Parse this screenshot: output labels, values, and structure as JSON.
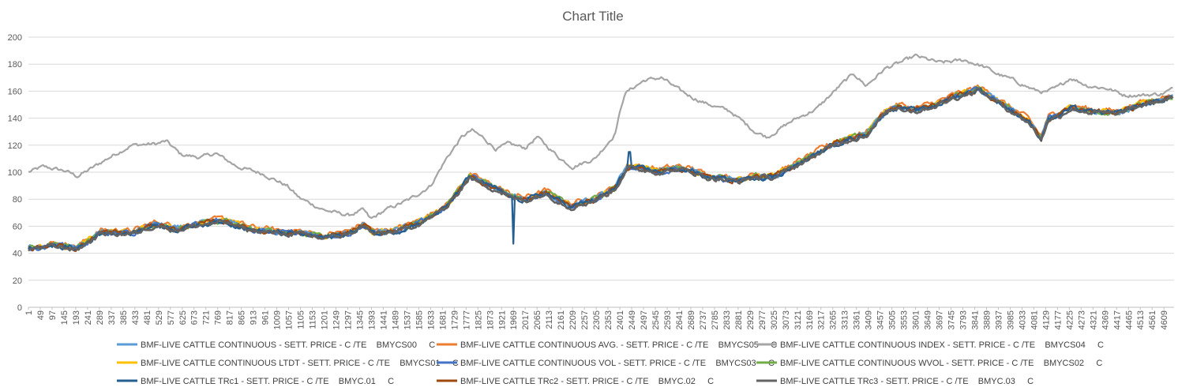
{
  "colors": {
    "background": "#ffffff",
    "gridline": "#d9d9d9",
    "axis": "#bfbfbf",
    "text": "#595959"
  },
  "chart_data": {
    "type": "line",
    "title": "Chart Title",
    "xlabel": "",
    "ylabel": "",
    "ylim": [
      0,
      200
    ],
    "y_ticks": [
      0,
      20,
      40,
      60,
      80,
      100,
      120,
      140,
      160,
      180,
      200
    ],
    "x_range": [
      1,
      4650
    ],
    "x_tick_labels": [
      "1",
      "49",
      "97",
      "145",
      "193",
      "241",
      "289",
      "337",
      "385",
      "433",
      "481",
      "529",
      "577",
      "625",
      "673",
      "721",
      "769",
      "817",
      "865",
      "913",
      "961",
      "1009",
      "1057",
      "1105",
      "1153",
      "1201",
      "1249",
      "1297",
      "1345",
      "1393",
      "1441",
      "1489",
      "1537",
      "1585",
      "1633",
      "1681",
      "1729",
      "1777",
      "1825",
      "1873",
      "1921",
      "1969",
      "2017",
      "2065",
      "2113",
      "2161",
      "2209",
      "2257",
      "2305",
      "2353",
      "2401",
      "2449",
      "2497",
      "2545",
      "2593",
      "2641",
      "2689",
      "2737",
      "2785",
      "2833",
      "2881",
      "2929",
      "2977",
      "3025",
      "3073",
      "3121",
      "3169",
      "3217",
      "3265",
      "3313",
      "3361",
      "3409",
      "3457",
      "3505",
      "3553",
      "3601",
      "3649",
      "3697",
      "3745",
      "3793",
      "3841",
      "3889",
      "3937",
      "3985",
      "4033",
      "4081",
      "4129",
      "4177",
      "4225",
      "4273",
      "4321",
      "4369",
      "4417",
      "4465",
      "4513",
      "4561",
      "4609"
    ],
    "grid": true,
    "legend_position": "bottom",
    "base_path": {
      "x": [
        1,
        100,
        200,
        300,
        420,
        520,
        600,
        700,
        800,
        900,
        1000,
        1100,
        1200,
        1300,
        1360,
        1400,
        1500,
        1600,
        1700,
        1790,
        1850,
        1900,
        1960,
        2017,
        2100,
        2200,
        2300,
        2380,
        2430,
        2480,
        2560,
        2640,
        2700,
        2750,
        2800,
        2880,
        2950,
        3025,
        3100,
        3200,
        3280,
        3330,
        3400,
        3480,
        3530,
        3600,
        3680,
        3760,
        3860,
        3940,
        4000,
        4060,
        4110,
        4140,
        4180,
        4230,
        4320,
        4420,
        4510,
        4600,
        4650
      ],
      "y": [
        44,
        46,
        44,
        56,
        55,
        62,
        58,
        62,
        64,
        58,
        56,
        55,
        52,
        55,
        61,
        55,
        57,
        64,
        75,
        97,
        92,
        88,
        82,
        80,
        85,
        75,
        80,
        88,
        104,
        103,
        101,
        103,
        101,
        97,
        96,
        94,
        97,
        97,
        104,
        114,
        122,
        125,
        128,
        145,
        149,
        146,
        150,
        156,
        162,
        152,
        145,
        138,
        125,
        140,
        142,
        148,
        145,
        144,
        150,
        154,
        156
      ]
    },
    "series": [
      {
        "name": "BMF-LIVE CATTLE CONTINUOUS - SETT. PRICE - C /TE    BMYCS00     C",
        "color": "#5b9bd5",
        "offset": 0,
        "legend_row": 0,
        "legend_col": 0
      },
      {
        "name": "BMF-LIVE CATTLE CONTINUOUS AVG. - SETT. PRICE - C /TE    BMYCS05     C",
        "color": "#ed7d31",
        "offset": 1.6,
        "legend_row": 0,
        "legend_col": 1
      },
      {
        "name": "BMF-LIVE CATTLE CONTINUOUS INDEX - SETT. PRICE - C /TE    BMYCS04     C",
        "color": "#a5a5a5",
        "x": [
          1,
          60,
          150,
          200,
          240,
          330,
          420,
          520,
          560,
          620,
          700,
          760,
          850,
          950,
          1050,
          1100,
          1200,
          1300,
          1360,
          1390,
          1450,
          1550,
          1633,
          1700,
          1760,
          1800,
          1850,
          1900,
          1950,
          2017,
          2065,
          2113,
          2160,
          2209,
          2300,
          2380,
          2420,
          2450,
          2500,
          2570,
          2640,
          2700,
          2750,
          2850,
          2950,
          3000,
          3100,
          3200,
          3300,
          3350,
          3400,
          3480,
          3550,
          3600,
          3700,
          3800,
          3880,
          3930,
          4000,
          4080,
          4129,
          4180,
          4230,
          4300,
          4380,
          4450,
          4520,
          4600,
          4650
        ],
        "y": [
          100,
          104,
          101,
          97,
          101,
          111,
          120,
          121,
          123,
          113,
          111,
          114,
          104,
          99,
          90,
          81,
          72,
          68,
          72,
          65,
          72,
          80,
          90,
          111,
          126,
          131,
          125,
          117,
          121,
          118,
          126,
          118,
          110,
          104,
          110,
          128,
          158,
          162,
          168,
          170,
          161,
          155,
          151,
          145,
          130,
          126,
          138,
          147,
          165,
          173,
          164,
          177,
          182,
          186,
          181,
          183,
          178,
          173,
          168,
          161,
          159,
          163,
          170,
          164,
          162,
          157,
          157,
          158,
          162
        ],
        "legend_row": 0,
        "legend_col": 2
      },
      {
        "name": "BMF-LIVE CATTLE CONTINUOUS LTDT - SETT. PRICE - C /TE    BMYCS01     C",
        "color": "#ffc000",
        "offset": 0.3,
        "legend_row": 1,
        "legend_col": 0
      },
      {
        "name": "BMF-LIVE CATTLE CONTINUOUS VOL - SETT. PRICE - C /TE    BMYCS03     C",
        "color": "#4472c4",
        "offset": -0.4,
        "legend_row": 1,
        "legend_col": 1
      },
      {
        "name": "BMF-LIVE CATTLE CONTINUOUS WVOL - SETT. PRICE - C /TE    BMYCS02     C",
        "color": "#70ad47",
        "offset": 0.2,
        "legend_row": 1,
        "legend_col": 2
      },
      {
        "name": "BMF-LIVE CATTLE TRc1 - SETT. PRICE - C /TE    BMYC.01     C",
        "color": "#255e91",
        "offset": -0.6,
        "spikes": [
          {
            "x": 1969,
            "y": 47
          },
          {
            "x": 2440,
            "y": 115
          }
        ],
        "legend_row": 2,
        "legend_col": 0
      },
      {
        "name": "BMF-LIVE CATTLE TRc2 - SETT. PRICE - C /TE    BMYC.02     C",
        "color": "#9e480e",
        "offset": -0.2,
        "legend_row": 2,
        "legend_col": 1
      },
      {
        "name": "BMF-LIVE CATTLE TRc3 - SETT. PRICE - C /TE    BMYC.03     C",
        "color": "#636363",
        "offset": -1.0,
        "legend_row": 2,
        "legend_col": 2
      }
    ]
  }
}
